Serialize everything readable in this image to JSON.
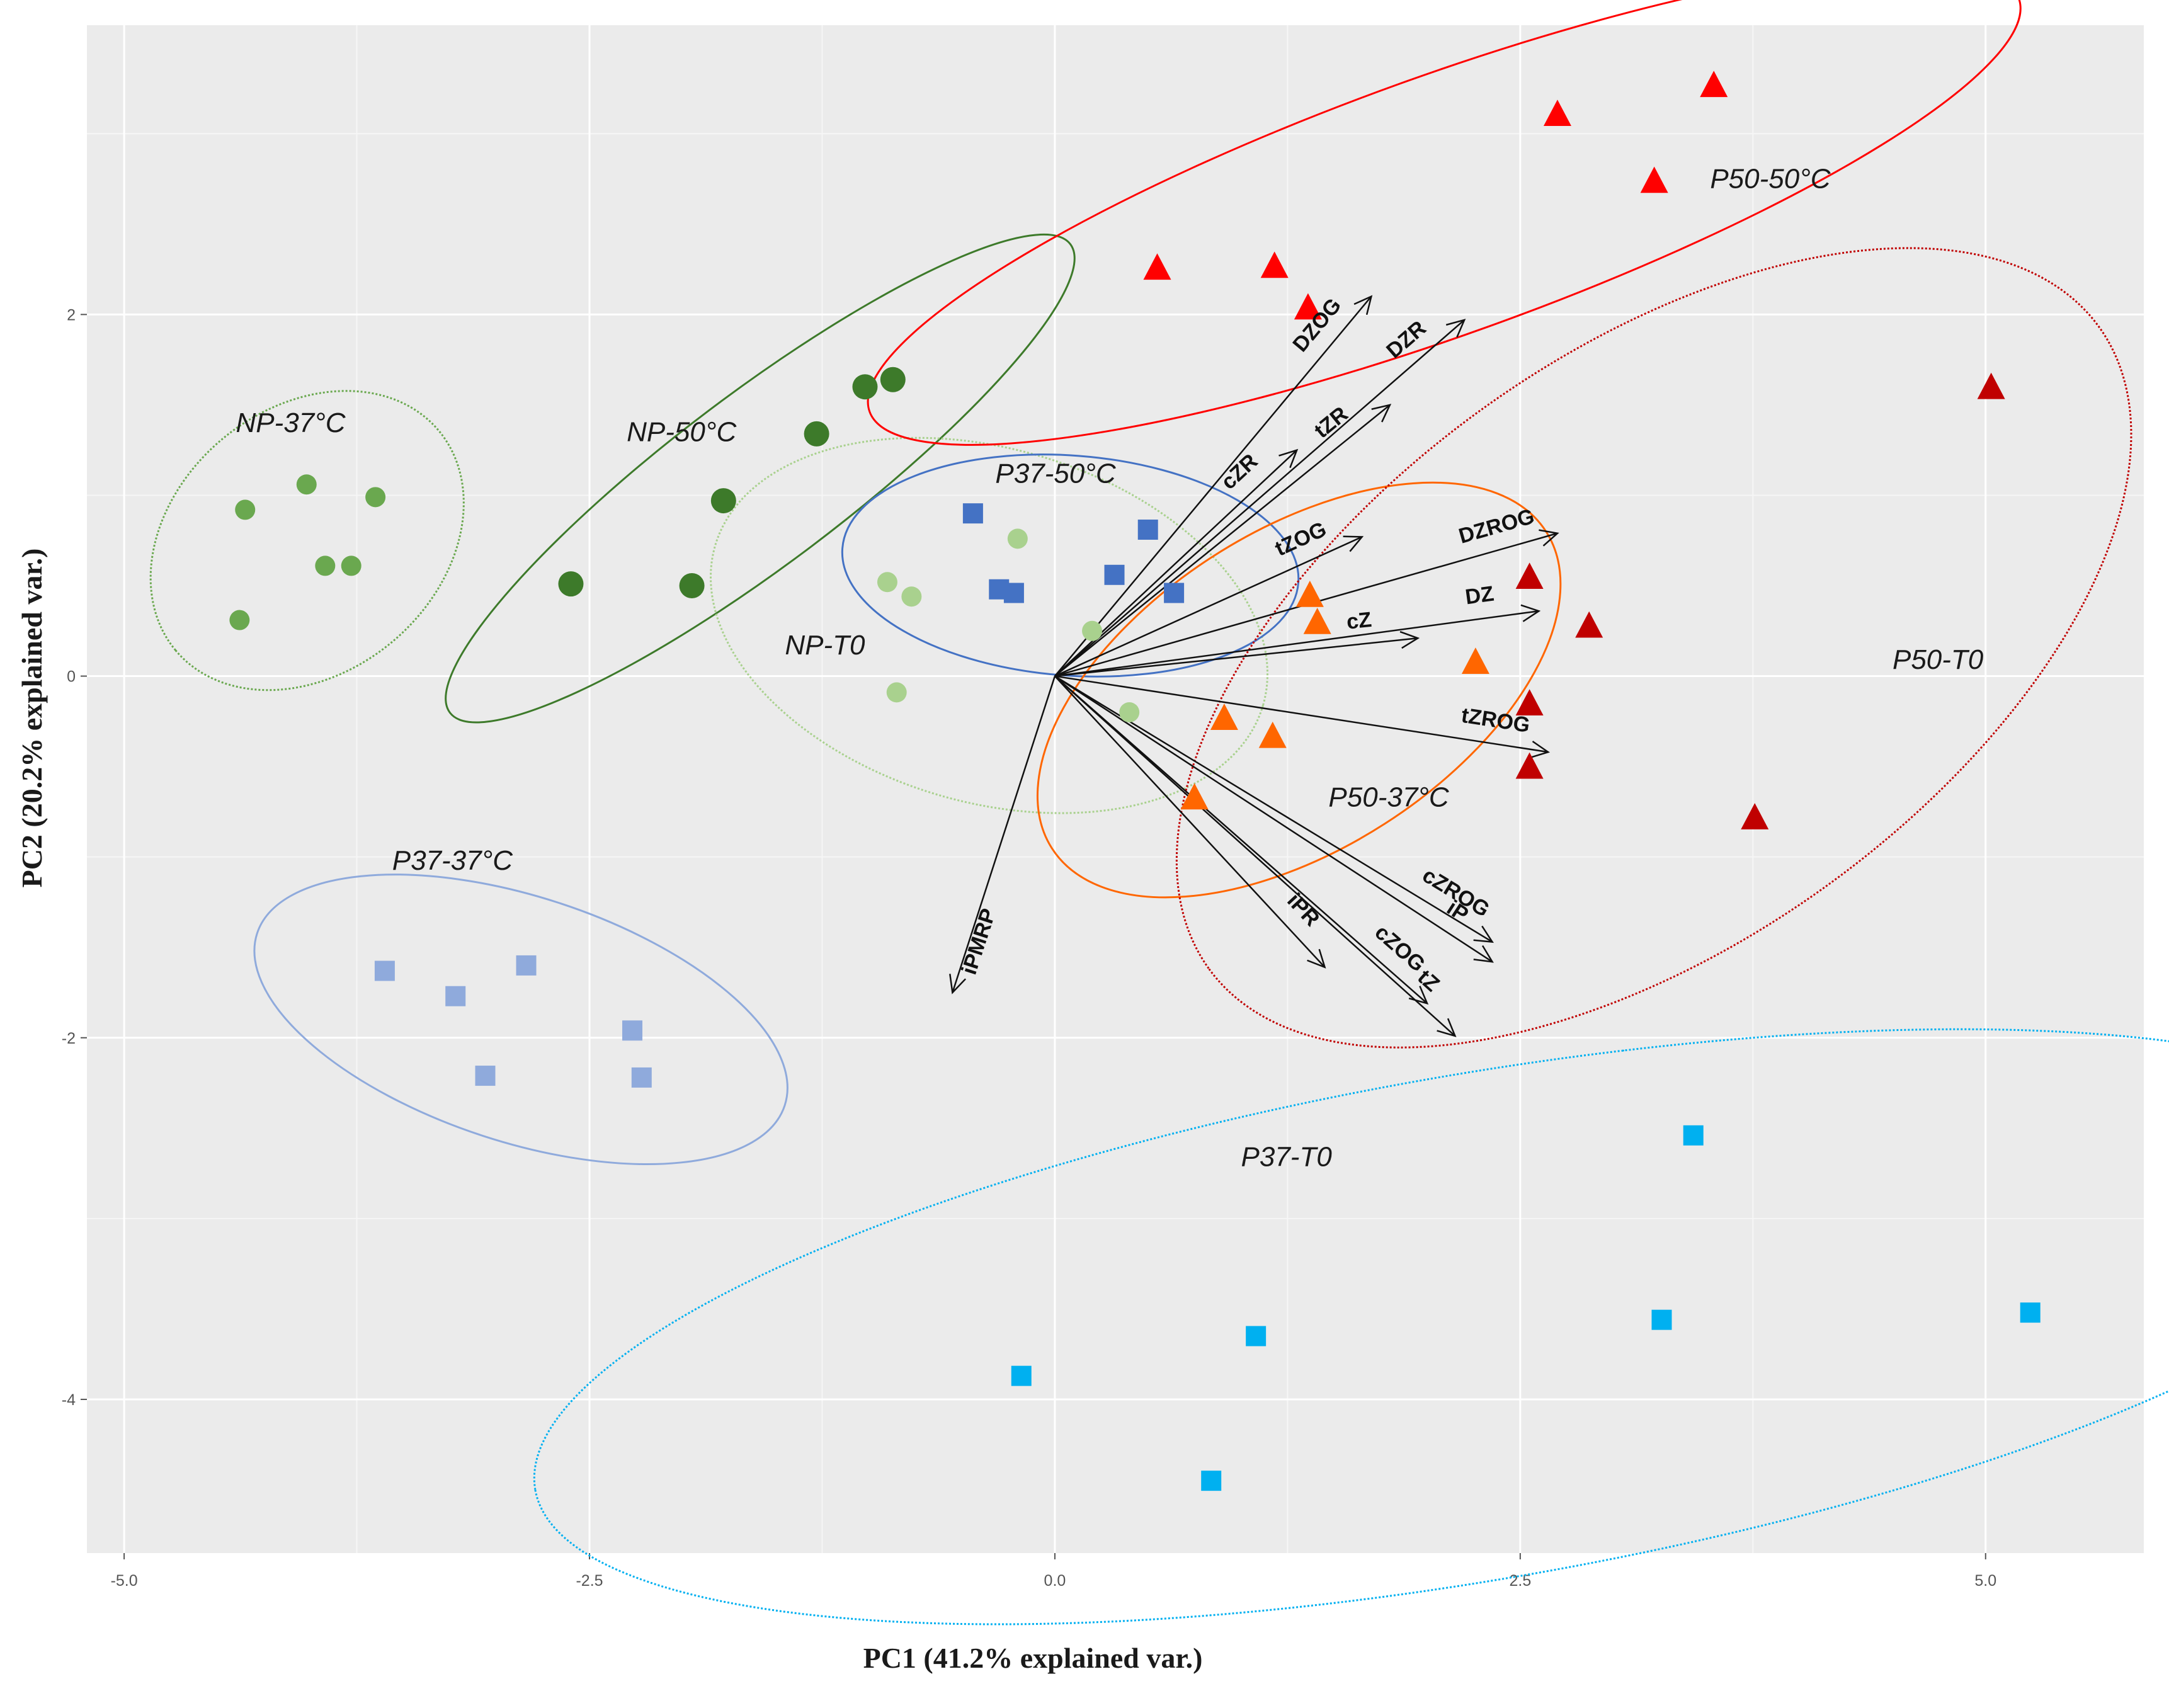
{
  "chart_data": {
    "type": "scatter",
    "xlabel": "PC1 (41.2% explained var.)",
    "ylabel": "PC2 (20.2% explained var.)",
    "xlim": [
      -5.2,
      5.85
    ],
    "ylim": [
      -4.85,
      3.6
    ],
    "x_ticks": [
      -5.0,
      -2.5,
      0.0,
      2.5,
      5.0
    ],
    "x_tick_labels": [
      "-5.0",
      "-2.5",
      "0.0",
      "2.5",
      "5.0"
    ],
    "y_ticks": [
      -4,
      -2,
      0,
      2
    ],
    "y_tick_labels": [
      "-4",
      "-2",
      "0",
      "2"
    ],
    "y_minor_gridlines": [
      -3,
      -1,
      1,
      3
    ],
    "x_minor_gridlines": [
      -3.75,
      -1.25,
      1.25,
      3.75
    ],
    "grid": true,
    "background": "#ebebeb",
    "groups": [
      {
        "name": "NP-37°C",
        "color": "#6aa84f",
        "marker": "circle",
        "ellipse_style": "dotted",
        "x": [
          -4.35,
          -4.02,
          -3.92,
          -3.78,
          -3.65,
          -4.38
        ],
        "y": [
          0.92,
          1.06,
          0.61,
          0.61,
          0.99,
          0.31
        ]
      },
      {
        "name": "NP-50°C",
        "color": "#3d7a2a",
        "marker": "circle",
        "ellipse_style": "solid",
        "x": [
          -2.6,
          -1.95,
          -1.78,
          -1.28,
          -1.02,
          -0.87
        ],
        "y": [
          0.51,
          0.5,
          0.97,
          1.34,
          1.6,
          1.64
        ]
      },
      {
        "name": "NP-T0",
        "color": "#a9d18e",
        "marker": "circle",
        "ellipse_style": "dotted",
        "x": [
          -0.9,
          -0.77,
          -0.2,
          0.2,
          0.4,
          -0.85
        ],
        "y": [
          0.52,
          0.44,
          0.76,
          0.25,
          -0.2,
          -0.09
        ]
      },
      {
        "name": "P37-50°C",
        "color": "#4472c4",
        "marker": "square",
        "ellipse_style": "solid",
        "x": [
          -0.44,
          -0.3,
          -0.22,
          0.32,
          0.5,
          0.64
        ],
        "y": [
          0.9,
          0.48,
          0.46,
          0.56,
          0.81,
          0.46
        ]
      },
      {
        "name": "P37-37°C",
        "color": "#8faadc",
        "marker": "square",
        "ellipse_style": "solid",
        "x": [
          -3.6,
          -3.22,
          -2.84,
          -3.06,
          -2.27,
          -2.22
        ],
        "y": [
          -1.63,
          -1.77,
          -1.6,
          -2.21,
          -1.96,
          -2.22
        ]
      },
      {
        "name": "P37-T0",
        "color": "#00b0f0",
        "marker": "square",
        "ellipse_style": "dotted",
        "x": [
          3.43,
          1.08,
          -0.18,
          3.26,
          5.24,
          0.84
        ],
        "y": [
          -2.54,
          -3.65,
          -3.87,
          -3.56,
          -3.52,
          -4.45
        ]
      },
      {
        "name": "P50-50°C",
        "color": "#ff0000",
        "marker": "triangle",
        "ellipse_style": "solid",
        "x": [
          0.55,
          1.18,
          1.36,
          2.7,
          3.22,
          3.54
        ],
        "y": [
          2.25,
          2.26,
          2.03,
          3.1,
          2.73,
          3.26
        ]
      },
      {
        "name": "P50-37°C",
        "color": "#ff6600",
        "marker": "triangle",
        "ellipse_style": "solid",
        "x": [
          1.37,
          1.41,
          2.26,
          0.91,
          1.17,
          0.75
        ],
        "y": [
          0.44,
          0.29,
          0.07,
          -0.24,
          -0.34,
          -0.68
        ]
      },
      {
        "name": "P50-T0",
        "color": "#c00000",
        "marker": "triangle",
        "ellipse_style": "dotted",
        "x": [
          5.03,
          2.55,
          2.87,
          2.55,
          2.55,
          3.76
        ],
        "y": [
          1.59,
          0.54,
          0.27,
          -0.16,
          -0.51,
          -0.79
        ]
      }
    ],
    "loadings": [
      {
        "name": "DZOG",
        "x": 1.7,
        "y": 2.1
      },
      {
        "name": "DZR",
        "x": 2.2,
        "y": 1.97
      },
      {
        "name": "cZR",
        "x": 1.3,
        "y": 1.25
      },
      {
        "name": "tZR",
        "x": 1.8,
        "y": 1.5
      },
      {
        "name": "tZOG",
        "x": 1.65,
        "y": 0.77
      },
      {
        "name": "DZROG",
        "x": 2.7,
        "y": 0.79
      },
      {
        "name": "DZ",
        "x": 2.6,
        "y": 0.36
      },
      {
        "name": "cZ",
        "x": 1.95,
        "y": 0.21
      },
      {
        "name": "tZROG",
        "x": 2.65,
        "y": -0.42
      },
      {
        "name": "cZROG",
        "x": 2.35,
        "y": -1.47
      },
      {
        "name": "iP",
        "x": 2.35,
        "y": -1.58
      },
      {
        "name": "cZOG",
        "x": 2.0,
        "y": -1.81
      },
      {
        "name": "iPR",
        "x": 1.45,
        "y": -1.61
      },
      {
        "name": "tZ",
        "x": 2.15,
        "y": -1.99
      },
      {
        "name": "iPMRP",
        "x": -0.55,
        "y": -1.75
      }
    ]
  }
}
